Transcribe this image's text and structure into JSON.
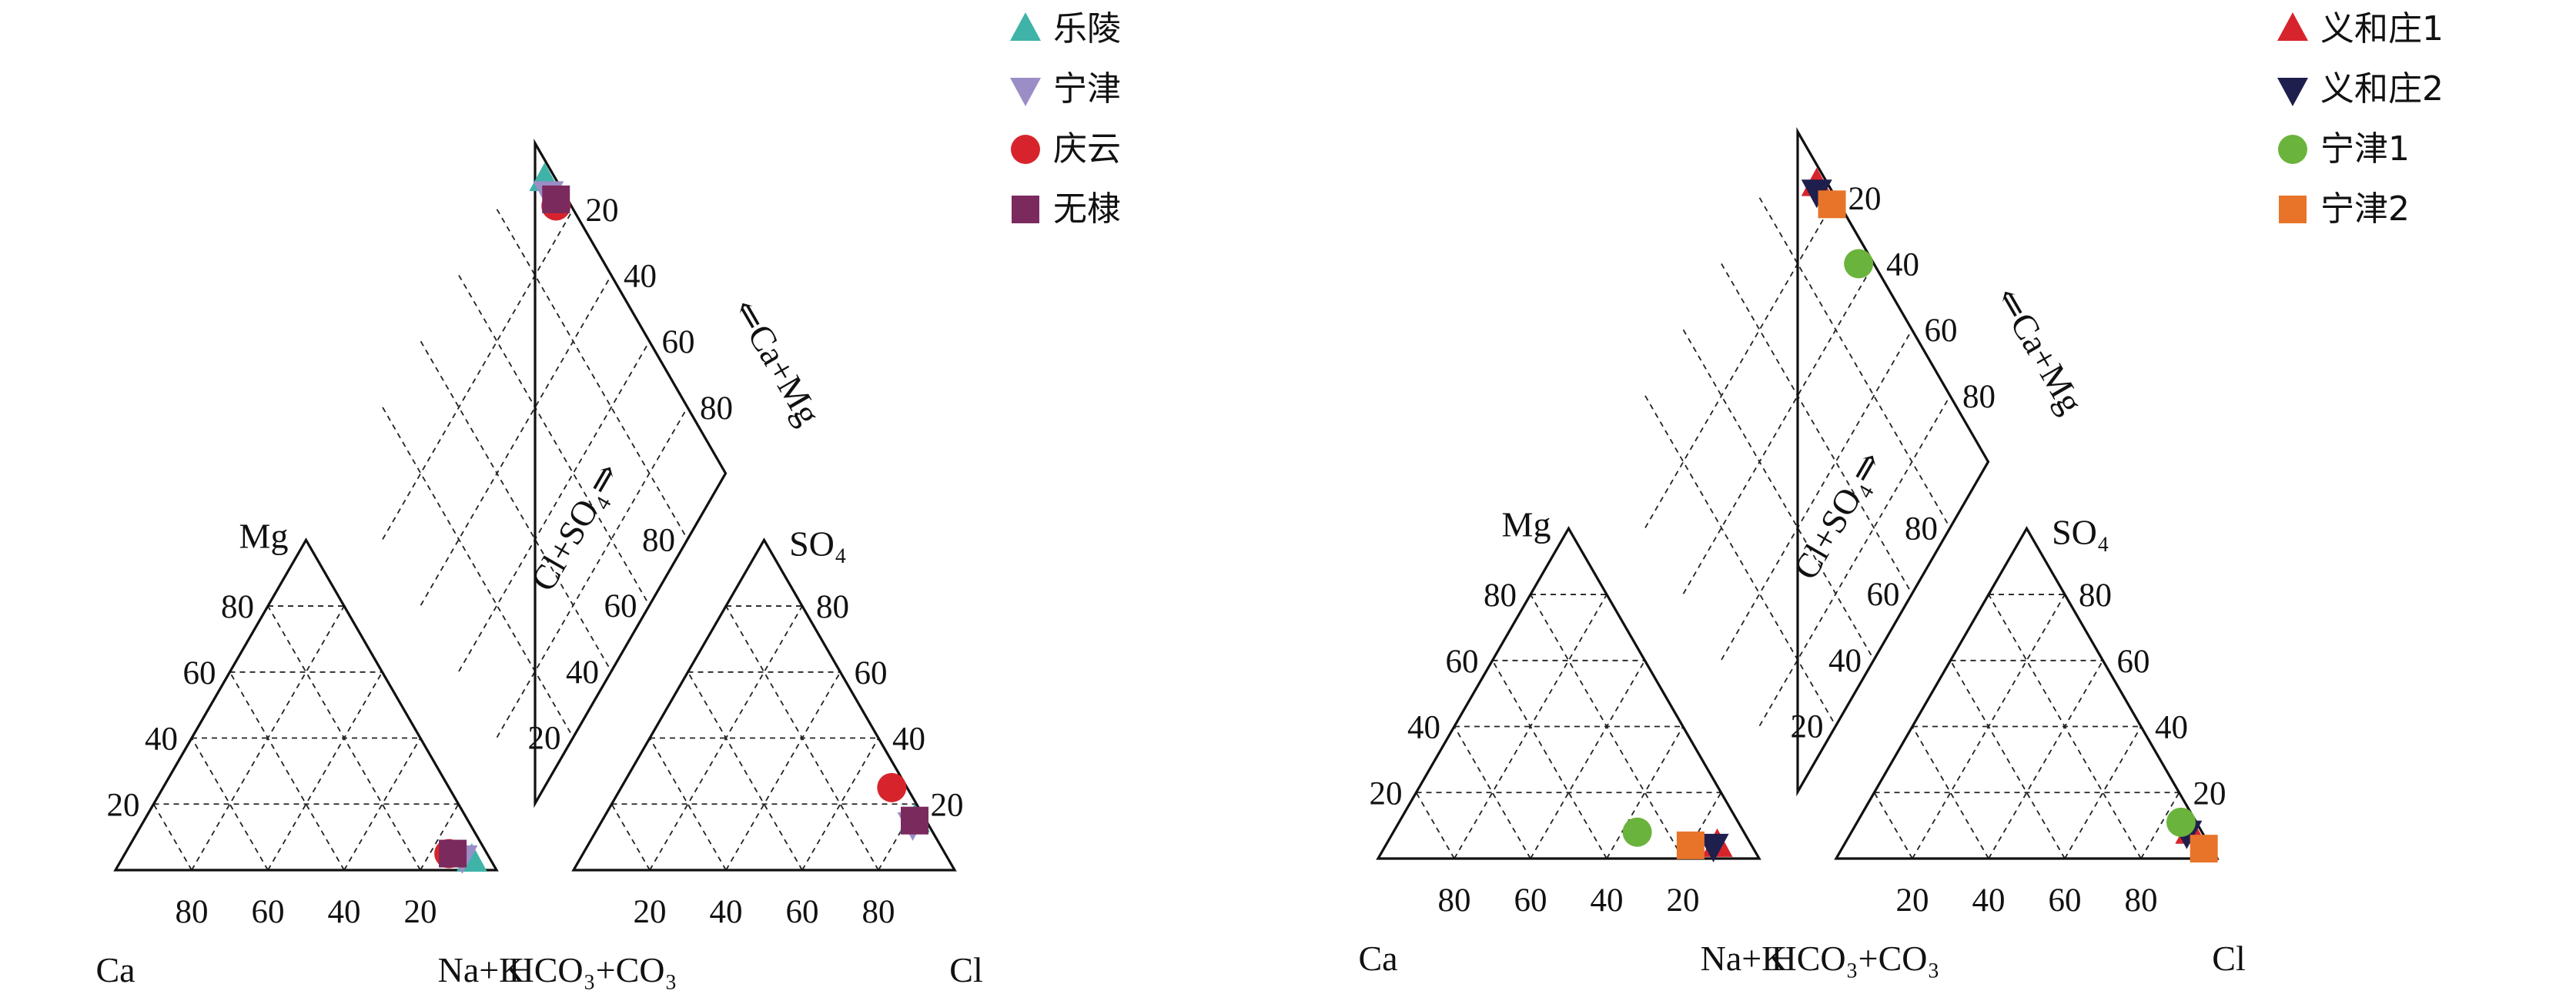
{
  "chart_data": [
    {
      "type": "scatter",
      "subtype": "piper-diagram",
      "corner_labels": {
        "cation_left": "Ca",
        "cation_right": "Na+K",
        "cation_top": "Mg",
        "anion_left": "HCO₃+CO₃",
        "anion_right": "Cl",
        "anion_top": "SO₄"
      },
      "diamond_labels": {
        "left": "Cl+SO₄⇒",
        "right": "⇐Ca+Mg"
      },
      "ticks": {
        "cation_x": [
          "80",
          "60",
          "40",
          "20"
        ],
        "cation_y": [
          "80",
          "60",
          "40",
          "20"
        ],
        "anion_x": [
          "20",
          "40",
          "60",
          "80"
        ],
        "anion_y": [
          "80",
          "60",
          "40",
          "20"
        ],
        "diamond_left": [
          "80",
          "60",
          "40",
          "20"
        ],
        "diamond_right": [
          "80",
          "60",
          "40",
          "20"
        ]
      },
      "legend": {
        "position": "top-right"
      },
      "series": [
        {
          "name": "乐陵",
          "marker": "triangle-up",
          "color": "#3fb3a8",
          "cation": {
            "Ca": 5,
            "Mg": 3,
            "NaK": 92
          },
          "anion": {
            "HCO3": 3,
            "SO4": 15,
            "Cl": 82
          }
        },
        {
          "name": "宁津",
          "marker": "triangle-down",
          "color": "#9b8ec6",
          "cation": {
            "Ca": 7,
            "Mg": 4,
            "NaK": 89
          },
          "anion": {
            "HCO3": 4,
            "SO4": 14,
            "Cl": 82
          }
        },
        {
          "name": "庆云",
          "marker": "circle",
          "color": "#d7242c",
          "cation": {
            "Ca": 10,
            "Mg": 5,
            "NaK": 85
          },
          "anion": {
            "HCO3": 4,
            "SO4": 25,
            "Cl": 71
          }
        },
        {
          "name": "无棣",
          "marker": "square",
          "color": "#7b2a5e",
          "cation": {
            "Ca": 9,
            "Mg": 5,
            "NaK": 86
          },
          "anion": {
            "HCO3": 3,
            "SO4": 15,
            "Cl": 82
          }
        }
      ]
    },
    {
      "type": "scatter",
      "subtype": "piper-diagram",
      "corner_labels": {
        "cation_left": "Ca",
        "cation_right": "Na+K",
        "cation_top": "Mg",
        "anion_left": "HCO₃+CO₃",
        "anion_right": "Cl",
        "anion_top": "SO₄"
      },
      "diamond_labels": {
        "left": "Cl+SO₄⇒",
        "right": "⇐Ca+Mg"
      },
      "ticks": {
        "cation_x": [
          "80",
          "60",
          "40",
          "20"
        ],
        "cation_y": [
          "80",
          "60",
          "40",
          "20"
        ],
        "anion_x": [
          "20",
          "40",
          "60",
          "80"
        ],
        "anion_y": [
          "80",
          "60",
          "40",
          "20"
        ],
        "diamond_left": [
          "80",
          "60",
          "40",
          "20"
        ],
        "diamond_right": [
          "80",
          "60",
          "40",
          "20"
        ]
      },
      "legend": {
        "position": "top-right"
      },
      "series": [
        {
          "name": "义和庄1",
          "marker": "triangle-up",
          "color": "#d7242c",
          "cation": {
            "Ca": 9,
            "Mg": 4,
            "NaK": 87
          },
          "anion": {
            "HCO3": 3,
            "SO4": 8,
            "Cl": 89
          }
        },
        {
          "name": "义和庄2",
          "marker": "triangle-down",
          "color": "#1f1f4d",
          "cation": {
            "Ca": 10,
            "Mg": 4,
            "NaK": 86
          },
          "anion": {
            "HCO3": 4,
            "SO4": 8,
            "Cl": 88
          }
        },
        {
          "name": "宁津1",
          "marker": "circle",
          "color": "#6ab33c",
          "cation": {
            "Ca": 28,
            "Mg": 8,
            "NaK": 64
          },
          "anion": {
            "HCO3": 4,
            "SO4": 11,
            "Cl": 85
          }
        },
        {
          "name": "宁津2",
          "marker": "square",
          "color": "#e8742a",
          "cation": {
            "Ca": 16,
            "Mg": 4,
            "NaK": 80
          },
          "anion": {
            "HCO3": 2,
            "SO4": 3,
            "Cl": 95
          }
        }
      ]
    }
  ]
}
